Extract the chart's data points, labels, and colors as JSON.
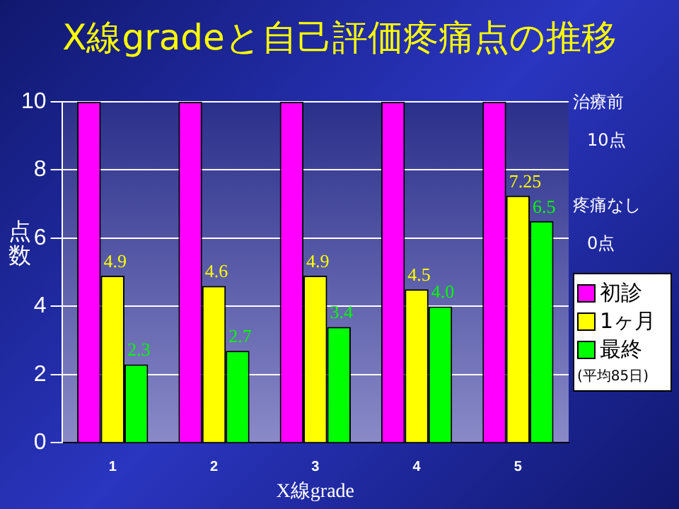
{
  "chart_data": {
    "type": "bar",
    "title": "X線gradeと自己評価疼痛点の推移",
    "xlabel": "X線grade",
    "ylabel": "点数",
    "categories": [
      "1",
      "2",
      "3",
      "4",
      "5"
    ],
    "series": [
      {
        "name": "初診",
        "color": "#ff00ff",
        "values": [
          10,
          10,
          10,
          10,
          10
        ]
      },
      {
        "name": "1ヶ月",
        "color": "#ffff00",
        "values": [
          4.9,
          4.6,
          4.9,
          4.5,
          7.25
        ],
        "value_labels": [
          "4.9",
          "4.6",
          "4.9",
          "4.5",
          "7.25"
        ]
      },
      {
        "name": "最終",
        "color": "#00ff00",
        "values": [
          2.3,
          2.7,
          3.4,
          4.0,
          6.5
        ],
        "value_labels": [
          "2.3",
          "2.7",
          "3.4",
          "4.0",
          "6.5"
        ]
      }
    ],
    "ylim": [
      0,
      10
    ],
    "yticks": [
      0,
      2,
      4,
      6,
      8,
      10
    ],
    "grid": "y",
    "legend": "right",
    "annotations": [
      "治療前",
      "10点",
      "疼痛なし",
      "0点",
      "(平均85日)"
    ]
  }
}
